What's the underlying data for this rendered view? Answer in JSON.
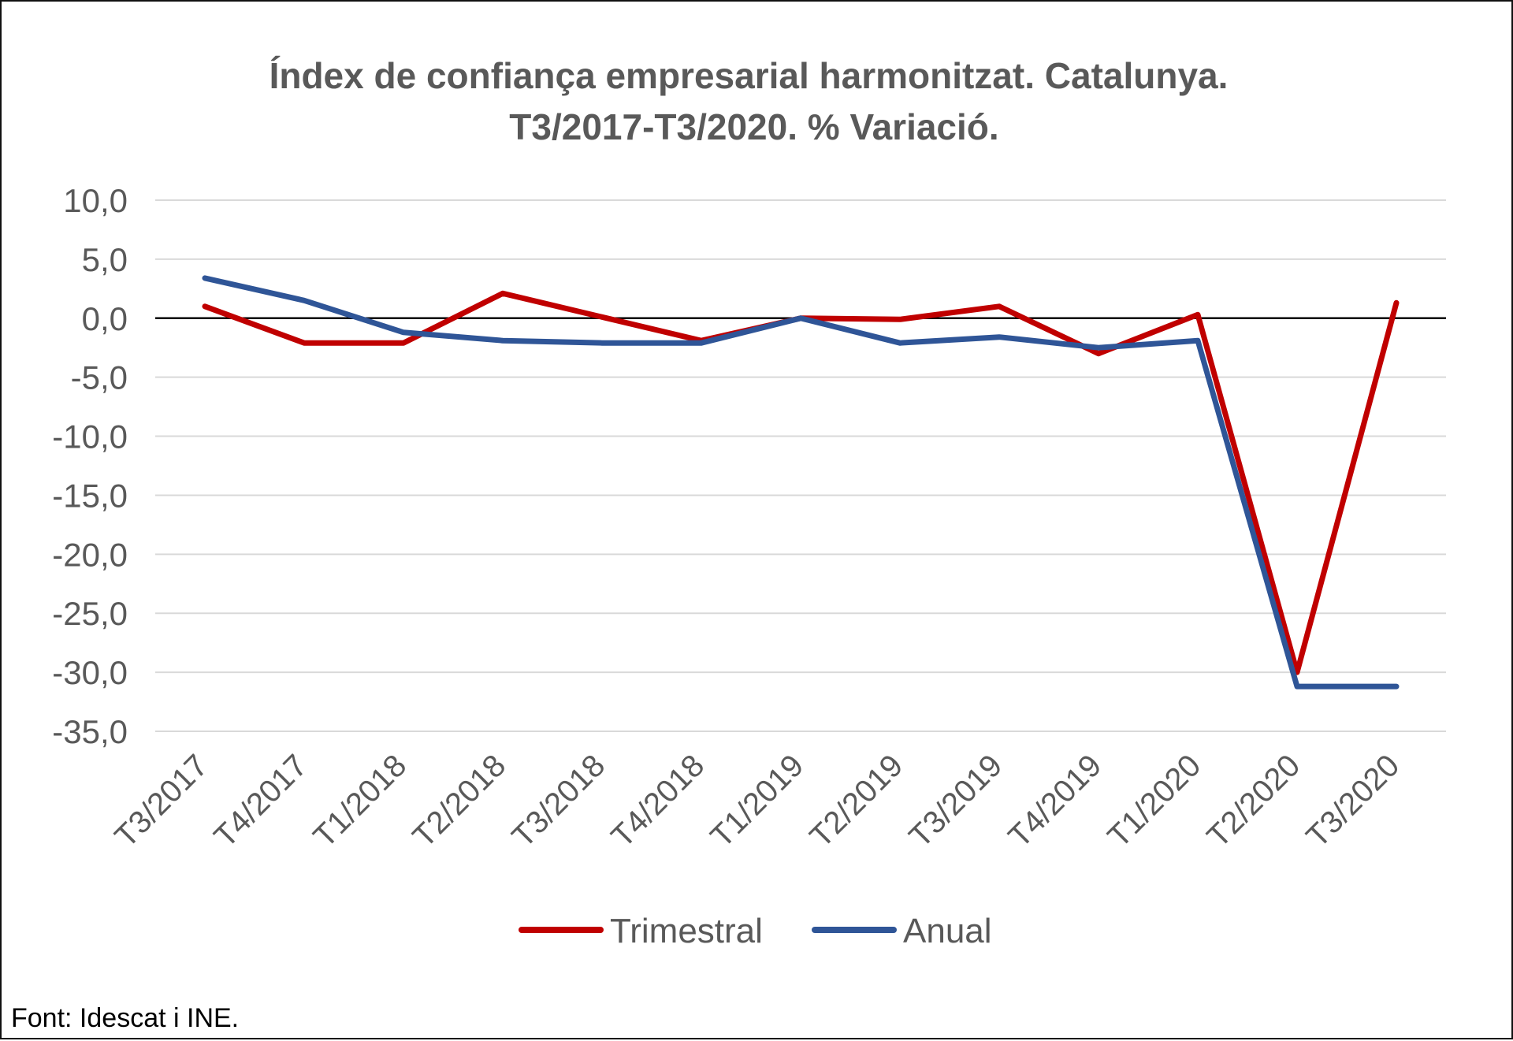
{
  "chart_data": {
    "type": "line",
    "title": "Índex de confiança empresarial harmonitzat. Catalunya.",
    "subtitle": "T3/2017-T3/2020. %  Variació.",
    "categories": [
      "T3/2017",
      "T4/2017",
      "T1/2018",
      "T2/2018",
      "T3/2018",
      "T4/2018",
      "T1/2019",
      "T2/2019",
      "T3/2019",
      "T4/2019",
      "T1/2020",
      "T2/2020",
      "T3/2020"
    ],
    "series": [
      {
        "name": "Trimestral",
        "color": "#c00000",
        "values": [
          1.0,
          -2.1,
          -2.1,
          2.1,
          0.1,
          -1.9,
          0.0,
          -0.1,
          1.0,
          -3.0,
          0.3,
          -30.0,
          1.3
        ]
      },
      {
        "name": "Anual",
        "color": "#2f5597",
        "values": [
          3.4,
          1.5,
          -1.2,
          -1.9,
          -2.1,
          -2.1,
          0.0,
          -2.1,
          -1.6,
          -2.5,
          -1.9,
          -31.2,
          -31.2
        ]
      }
    ],
    "ylim": [
      -35,
      10
    ],
    "yticks": [
      10,
      5,
      0,
      -5,
      -10,
      -15,
      -20,
      -25,
      -30,
      -35
    ],
    "ytick_labels": [
      "10,0",
      "5,0",
      "0,0",
      "-5,0",
      "-10,0",
      "-15,0",
      "-20,0",
      "-25,0",
      "-30,0",
      "-35,0"
    ],
    "xlabel": "",
    "ylabel": "",
    "grid": true,
    "legend": "bottom",
    "zero_line_color": "#000000",
    "grid_color": "#d9d9d9"
  },
  "source": "Font: Idescat i INE."
}
